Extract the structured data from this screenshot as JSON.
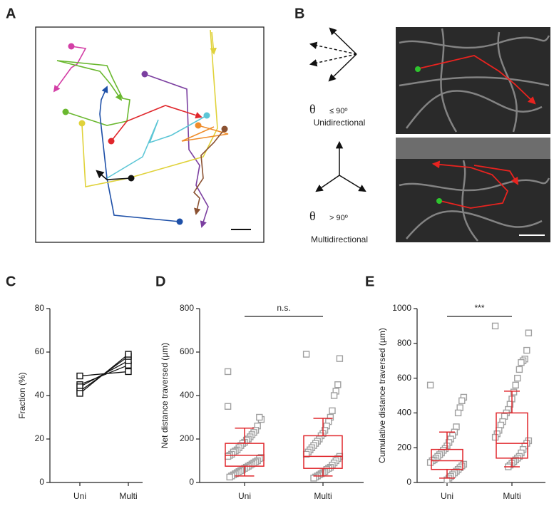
{
  "panel_labels": [
    "A",
    "B",
    "C",
    "D",
    "E"
  ],
  "diagram": {
    "theta": "θ",
    "uni_angle": "≤ 90º",
    "uni_label": "Unidirectional",
    "multi_angle": "> 90º",
    "multi_label": "Multidirectional"
  },
  "chart_data": [
    {
      "type": "line",
      "ylabel": "Fraction (%)",
      "categories": [
        "Uni",
        "Multi"
      ],
      "color": "#111111",
      "ylim": [
        0,
        80
      ],
      "yticks": [
        0,
        20,
        40,
        60,
        80
      ],
      "series": [
        {
          "values": [
            49,
            51
          ]
        },
        {
          "values": [
            45,
            54
          ]
        },
        {
          "values": [
            44,
            56
          ]
        },
        {
          "values": [
            42,
            58
          ]
        },
        {
          "values": [
            41,
            59
          ]
        }
      ]
    },
    {
      "type": "box",
      "ylabel": "Net distance traversed (µm)",
      "categories": [
        "Uni",
        "Multi"
      ],
      "annotation": "n.s.",
      "color": "#e0262b",
      "point_color": "#a0a0a0",
      "ylim": [
        0,
        800
      ],
      "yticks": [
        0,
        200,
        400,
        600,
        800
      ],
      "boxes": [
        {
          "low": 30,
          "q1": 75,
          "median": 125,
          "q3": 180,
          "high": 250
        },
        {
          "low": 30,
          "q1": 65,
          "median": 120,
          "q3": 215,
          "high": 295
        }
      ],
      "points": [
        [
          510,
          290,
          300,
          260,
          240,
          230,
          220,
          210,
          200,
          195,
          185,
          180,
          170,
          160,
          150,
          145,
          140,
          130,
          125,
          120,
          115,
          110,
          100,
          95,
          90,
          85,
          80,
          75,
          70,
          65,
          60,
          55,
          50,
          45,
          40,
          35,
          30,
          25,
          350
        ],
        [
          590,
          570,
          450,
          420,
          400,
          330,
          300,
          280,
          260,
          240,
          225,
          215,
          200,
          190,
          180,
          170,
          160,
          150,
          140,
          130,
          120,
          110,
          100,
          90,
          80,
          70,
          65,
          60,
          50,
          45,
          40,
          35,
          30,
          25,
          20
        ]
      ]
    },
    {
      "type": "box",
      "ylabel": "Cumulative distance traversed (µm)",
      "categories": [
        "Uni",
        "Multi"
      ],
      "annotation": "***",
      "color": "#e0262b",
      "point_color": "#a0a0a0",
      "ylim": [
        0,
        1000
      ],
      "yticks": [
        0,
        200,
        400,
        600,
        800,
        1000
      ],
      "boxes": [
        {
          "low": 25,
          "q1": 75,
          "median": 125,
          "q3": 190,
          "high": 290
        },
        {
          "low": 90,
          "q1": 140,
          "median": 225,
          "q3": 400,
          "high": 525
        }
      ],
      "points": [
        [
          560,
          490,
          470,
          430,
          400,
          320,
          290,
          270,
          250,
          230,
          210,
          195,
          185,
          170,
          160,
          150,
          140,
          130,
          125,
          115,
          105,
          95,
          85,
          75,
          65,
          55,
          45,
          35,
          25,
          15
        ],
        [
          900,
          860,
          760,
          710,
          700,
          690,
          650,
          600,
          560,
          520,
          480,
          450,
          420,
          400,
          380,
          350,
          330,
          300,
          280,
          260,
          240,
          225,
          210,
          190,
          170,
          150,
          140,
          130,
          120,
          110,
          100,
          90
        ]
      ]
    }
  ]
}
